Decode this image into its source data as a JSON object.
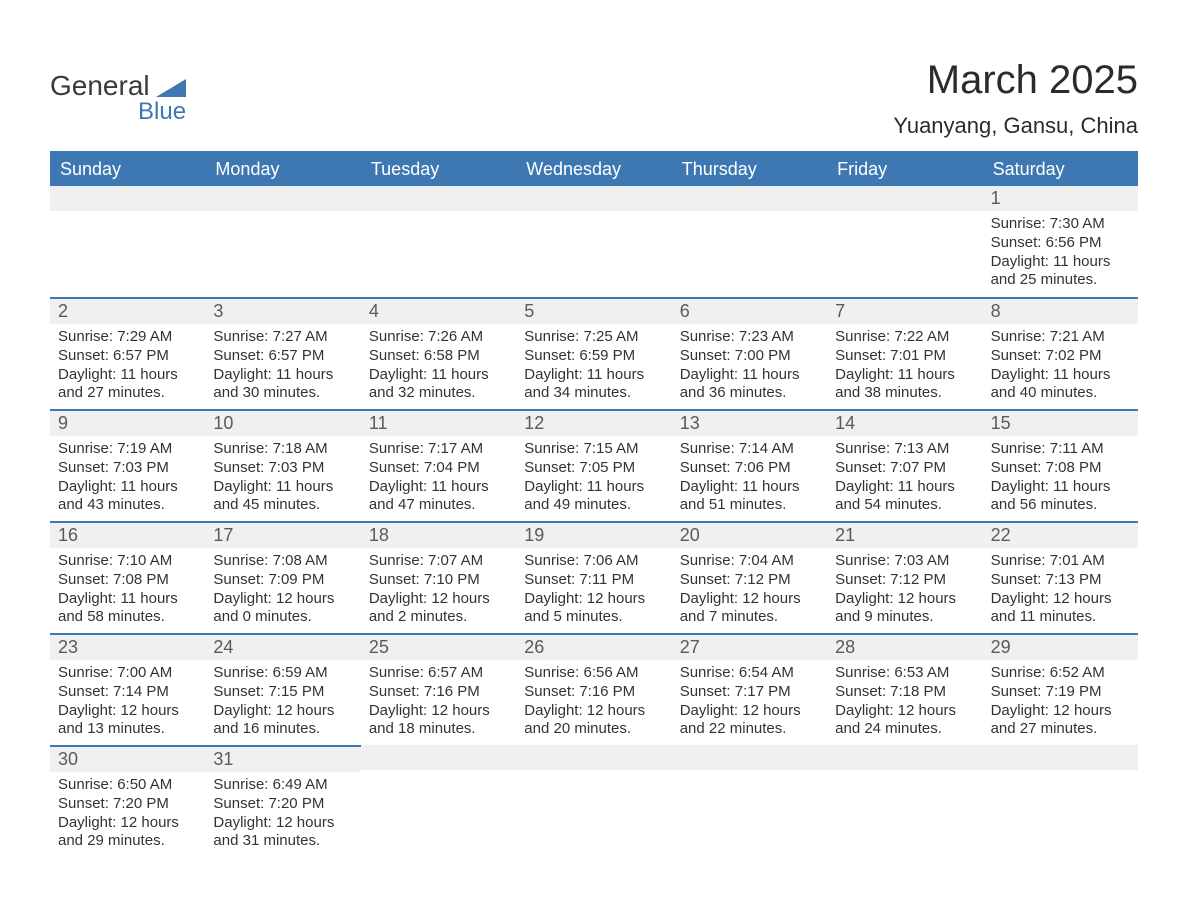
{
  "logo": {
    "main": "General",
    "sub": "Blue"
  },
  "header": {
    "title": "March 2025",
    "subtitle": "Yuanyang, Gansu, China"
  },
  "days_of_week": [
    "Sunday",
    "Monday",
    "Tuesday",
    "Wednesday",
    "Thursday",
    "Friday",
    "Saturday"
  ],
  "colors": {
    "accent": "#3e78b3",
    "header_text": "#2b2b2b",
    "body_text": "#333333",
    "daynum_bg": "#f0f0f0",
    "daynum_text": "#5a5a5a",
    "white": "#ffffff"
  },
  "weeks": [
    [
      null,
      null,
      null,
      null,
      null,
      null,
      {
        "n": "1",
        "sunrise": "Sunrise: 7:30 AM",
        "sunset": "Sunset: 6:56 PM",
        "daylight1": "Daylight: 11 hours",
        "daylight2": "and 25 minutes."
      }
    ],
    [
      {
        "n": "2",
        "sunrise": "Sunrise: 7:29 AM",
        "sunset": "Sunset: 6:57 PM",
        "daylight1": "Daylight: 11 hours",
        "daylight2": "and 27 minutes."
      },
      {
        "n": "3",
        "sunrise": "Sunrise: 7:27 AM",
        "sunset": "Sunset: 6:57 PM",
        "daylight1": "Daylight: 11 hours",
        "daylight2": "and 30 minutes."
      },
      {
        "n": "4",
        "sunrise": "Sunrise: 7:26 AM",
        "sunset": "Sunset: 6:58 PM",
        "daylight1": "Daylight: 11 hours",
        "daylight2": "and 32 minutes."
      },
      {
        "n": "5",
        "sunrise": "Sunrise: 7:25 AM",
        "sunset": "Sunset: 6:59 PM",
        "daylight1": "Daylight: 11 hours",
        "daylight2": "and 34 minutes."
      },
      {
        "n": "6",
        "sunrise": "Sunrise: 7:23 AM",
        "sunset": "Sunset: 7:00 PM",
        "daylight1": "Daylight: 11 hours",
        "daylight2": "and 36 minutes."
      },
      {
        "n": "7",
        "sunrise": "Sunrise: 7:22 AM",
        "sunset": "Sunset: 7:01 PM",
        "daylight1": "Daylight: 11 hours",
        "daylight2": "and 38 minutes."
      },
      {
        "n": "8",
        "sunrise": "Sunrise: 7:21 AM",
        "sunset": "Sunset: 7:02 PM",
        "daylight1": "Daylight: 11 hours",
        "daylight2": "and 40 minutes."
      }
    ],
    [
      {
        "n": "9",
        "sunrise": "Sunrise: 7:19 AM",
        "sunset": "Sunset: 7:03 PM",
        "daylight1": "Daylight: 11 hours",
        "daylight2": "and 43 minutes."
      },
      {
        "n": "10",
        "sunrise": "Sunrise: 7:18 AM",
        "sunset": "Sunset: 7:03 PM",
        "daylight1": "Daylight: 11 hours",
        "daylight2": "and 45 minutes."
      },
      {
        "n": "11",
        "sunrise": "Sunrise: 7:17 AM",
        "sunset": "Sunset: 7:04 PM",
        "daylight1": "Daylight: 11 hours",
        "daylight2": "and 47 minutes."
      },
      {
        "n": "12",
        "sunrise": "Sunrise: 7:15 AM",
        "sunset": "Sunset: 7:05 PM",
        "daylight1": "Daylight: 11 hours",
        "daylight2": "and 49 minutes."
      },
      {
        "n": "13",
        "sunrise": "Sunrise: 7:14 AM",
        "sunset": "Sunset: 7:06 PM",
        "daylight1": "Daylight: 11 hours",
        "daylight2": "and 51 minutes."
      },
      {
        "n": "14",
        "sunrise": "Sunrise: 7:13 AM",
        "sunset": "Sunset: 7:07 PM",
        "daylight1": "Daylight: 11 hours",
        "daylight2": "and 54 minutes."
      },
      {
        "n": "15",
        "sunrise": "Sunrise: 7:11 AM",
        "sunset": "Sunset: 7:08 PM",
        "daylight1": "Daylight: 11 hours",
        "daylight2": "and 56 minutes."
      }
    ],
    [
      {
        "n": "16",
        "sunrise": "Sunrise: 7:10 AM",
        "sunset": "Sunset: 7:08 PM",
        "daylight1": "Daylight: 11 hours",
        "daylight2": "and 58 minutes."
      },
      {
        "n": "17",
        "sunrise": "Sunrise: 7:08 AM",
        "sunset": "Sunset: 7:09 PM",
        "daylight1": "Daylight: 12 hours",
        "daylight2": "and 0 minutes."
      },
      {
        "n": "18",
        "sunrise": "Sunrise: 7:07 AM",
        "sunset": "Sunset: 7:10 PM",
        "daylight1": "Daylight: 12 hours",
        "daylight2": "and 2 minutes."
      },
      {
        "n": "19",
        "sunrise": "Sunrise: 7:06 AM",
        "sunset": "Sunset: 7:11 PM",
        "daylight1": "Daylight: 12 hours",
        "daylight2": "and 5 minutes."
      },
      {
        "n": "20",
        "sunrise": "Sunrise: 7:04 AM",
        "sunset": "Sunset: 7:12 PM",
        "daylight1": "Daylight: 12 hours",
        "daylight2": "and 7 minutes."
      },
      {
        "n": "21",
        "sunrise": "Sunrise: 7:03 AM",
        "sunset": "Sunset: 7:12 PM",
        "daylight1": "Daylight: 12 hours",
        "daylight2": "and 9 minutes."
      },
      {
        "n": "22",
        "sunrise": "Sunrise: 7:01 AM",
        "sunset": "Sunset: 7:13 PM",
        "daylight1": "Daylight: 12 hours",
        "daylight2": "and 11 minutes."
      }
    ],
    [
      {
        "n": "23",
        "sunrise": "Sunrise: 7:00 AM",
        "sunset": "Sunset: 7:14 PM",
        "daylight1": "Daylight: 12 hours",
        "daylight2": "and 13 minutes."
      },
      {
        "n": "24",
        "sunrise": "Sunrise: 6:59 AM",
        "sunset": "Sunset: 7:15 PM",
        "daylight1": "Daylight: 12 hours",
        "daylight2": "and 16 minutes."
      },
      {
        "n": "25",
        "sunrise": "Sunrise: 6:57 AM",
        "sunset": "Sunset: 7:16 PM",
        "daylight1": "Daylight: 12 hours",
        "daylight2": "and 18 minutes."
      },
      {
        "n": "26",
        "sunrise": "Sunrise: 6:56 AM",
        "sunset": "Sunset: 7:16 PM",
        "daylight1": "Daylight: 12 hours",
        "daylight2": "and 20 minutes."
      },
      {
        "n": "27",
        "sunrise": "Sunrise: 6:54 AM",
        "sunset": "Sunset: 7:17 PM",
        "daylight1": "Daylight: 12 hours",
        "daylight2": "and 22 minutes."
      },
      {
        "n": "28",
        "sunrise": "Sunrise: 6:53 AM",
        "sunset": "Sunset: 7:18 PM",
        "daylight1": "Daylight: 12 hours",
        "daylight2": "and 24 minutes."
      },
      {
        "n": "29",
        "sunrise": "Sunrise: 6:52 AM",
        "sunset": "Sunset: 7:19 PM",
        "daylight1": "Daylight: 12 hours",
        "daylight2": "and 27 minutes."
      }
    ],
    [
      {
        "n": "30",
        "sunrise": "Sunrise: 6:50 AM",
        "sunset": "Sunset: 7:20 PM",
        "daylight1": "Daylight: 12 hours",
        "daylight2": "and 29 minutes."
      },
      {
        "n": "31",
        "sunrise": "Sunrise: 6:49 AM",
        "sunset": "Sunset: 7:20 PM",
        "daylight1": "Daylight: 12 hours",
        "daylight2": "and 31 minutes."
      },
      null,
      null,
      null,
      null,
      null
    ]
  ]
}
